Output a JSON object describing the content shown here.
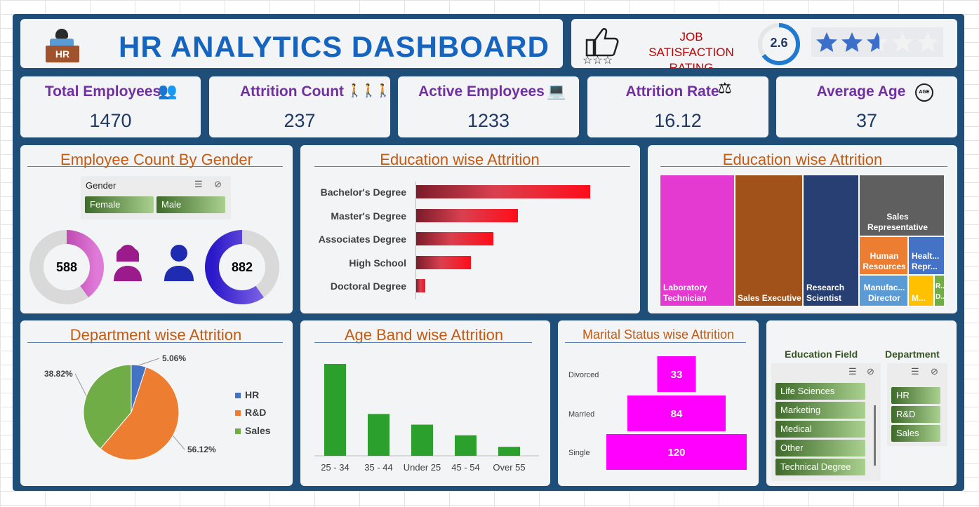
{
  "header": {
    "title": "HR ANALYTICS DASHBOARD",
    "icon": "hr-desk-icon",
    "icon_text": "HR"
  },
  "satisfaction": {
    "label_line1": "JOB SATISFACTION",
    "label_line2": "RATING",
    "value": "2.6",
    "gauge_fraction": 0.65,
    "stars_filled": 2.6,
    "stars_total": 5
  },
  "kpis": [
    {
      "label": "Total Employees",
      "value": "1470",
      "icon": "people-icon"
    },
    {
      "label": "Attrition Count",
      "value": "237",
      "icon": "attrition-icon"
    },
    {
      "label": "Active Employees",
      "value": "1233",
      "icon": "desk-worker-icon"
    },
    {
      "label": "Attrition Rate",
      "value": "16.12",
      "icon": "balance-icon"
    },
    {
      "label": "Average Age",
      "value": "37",
      "icon": "age-icon"
    }
  ],
  "gender": {
    "title": "Employee Count By Gender",
    "slicer_title": "Gender",
    "options": [
      "Female",
      "Male"
    ],
    "female": "588",
    "male": "882",
    "female_fraction": 0.4,
    "male_fraction": 0.6
  },
  "edu_bar": {
    "title": "Education wise Attrition"
  },
  "edu_treemap": {
    "title": "Education wise Attrition"
  },
  "dept": {
    "title": "Department wise Attrition"
  },
  "age": {
    "title": "Age Band wise Attrition"
  },
  "marital": {
    "title": "Marital Status wise Attrition"
  },
  "slicers": {
    "education_field": {
      "title": "Education Field",
      "items": [
        "Life Sciences",
        "Marketing",
        "Medical",
        "Other",
        "Technical Degree"
      ]
    },
    "department": {
      "title": "Department",
      "items": [
        "HR",
        "R&D",
        "Sales"
      ]
    }
  },
  "colors": {
    "accent": "#1565c0",
    "kpi_label": "#7030a0",
    "chart_title": "#c55a11",
    "frame": "#1f4e79"
  },
  "chart_data": [
    {
      "type": "bar",
      "title": "Education wise Attrition",
      "orientation": "horizontal",
      "categories": [
        "Bachelor's Degree",
        "Master's Degree",
        "Associates Degree",
        "High School",
        "Doctoral Degree"
      ],
      "values": [
        99,
        58,
        44,
        31,
        5
      ]
    },
    {
      "type": "heatmap",
      "subtype": "treemap",
      "title": "Education wise Attrition",
      "labels": [
        "Laboratory Technician",
        "Sales Executive",
        "Research Scientist",
        "Sales Representative",
        "Human Resources",
        "Healt... Repr...",
        "Manufac... Director",
        "M...",
        "R... D..."
      ],
      "values": [
        62,
        57,
        47,
        33,
        12,
        5,
        10,
        4,
        2
      ],
      "colors": [
        "#e53ad2",
        "#a0521a",
        "#283f73",
        "#5f5f5f",
        "#ed7d31",
        "#4472c4",
        "#5b9bd5",
        "#ffc000",
        "#70ad47"
      ]
    },
    {
      "type": "pie",
      "title": "Department wise Attrition",
      "categories": [
        "HR",
        "R&D",
        "Sales"
      ],
      "values": [
        5.06,
        56.12,
        38.82
      ],
      "labels": [
        "5.06%",
        "56.12%",
        "38.82%"
      ],
      "colors": [
        "#4472c4",
        "#ed7d31",
        "#70ad47"
      ],
      "legend": "right"
    },
    {
      "type": "bar",
      "title": "Age Band wise Attrition",
      "categories": [
        "25 - 34",
        "35 - 44",
        "Under 25",
        "45 - 54",
        "Over 55"
      ],
      "values": [
        112,
        51,
        38,
        25,
        11
      ]
    },
    {
      "type": "bar",
      "subtype": "funnel",
      "title": "Marital Status wise Attrition",
      "categories": [
        "Divorced",
        "Married",
        "Single"
      ],
      "values": [
        33,
        84,
        120
      ]
    }
  ]
}
